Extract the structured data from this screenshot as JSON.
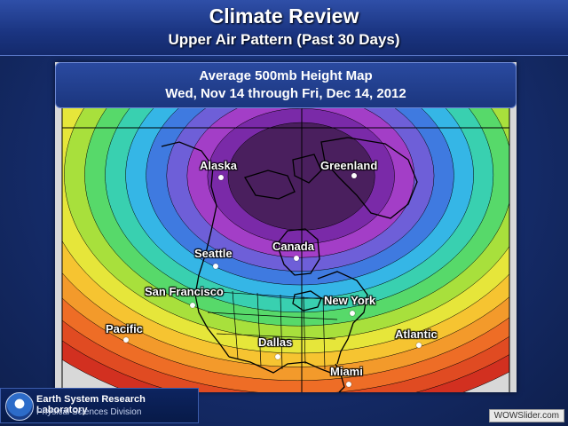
{
  "header": {
    "title": "Climate Review",
    "subtitle": "Upper Air Pattern (Past 30 Days)"
  },
  "map": {
    "title_line1": "Average 500mb Height Map",
    "title_line2": "Wed, Nov 14 through Fri, Dec 14, 2012",
    "labels": {
      "alaska": "Alaska",
      "greenland": "Greenland",
      "canada": "Canada",
      "seattle": "Seattle",
      "san_francisco": "San Francisco",
      "new_york": "New York",
      "pacific": "Pacific",
      "dallas": "Dallas",
      "atlantic": "Atlantic",
      "miami": "Miami"
    },
    "color_scale": [
      "#4a1f5e",
      "#7a2aa8",
      "#a33ec7",
      "#6e5fd8",
      "#3f7ae0",
      "#35b6e6",
      "#39d0b0",
      "#57d96a",
      "#a8e03c",
      "#e6e63a",
      "#f6c431",
      "#f39a2b",
      "#ee6d26",
      "#e04b22",
      "#d23020"
    ]
  },
  "footer": {
    "org_line1": "Earth System Research Laboratory",
    "org_line2": "Physical Sciences Division",
    "watermark": "WOWSlider.com"
  }
}
